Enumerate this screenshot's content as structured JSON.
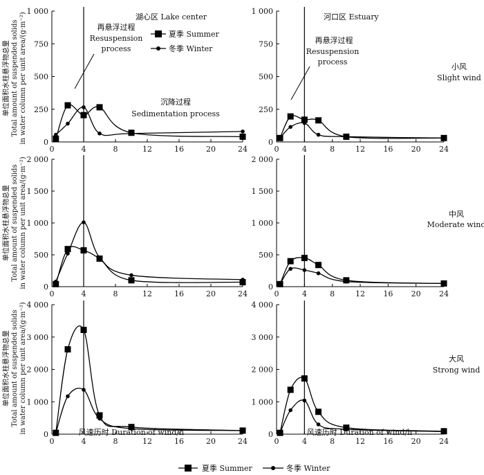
{
  "figure": {
    "y_axis_label_cn": "单位面积水柱悬浮物总量",
    "y_axis_label_en_1": "Total amount of suspended solids",
    "y_axis_label_en_2": "in water column per unit area/(g·m⁻²)",
    "x_axis_label": "风速历时 Duration of wind/h",
    "legend": {
      "summer": "夏季 Summer",
      "winter": "冬季 Winter"
    },
    "columns": {
      "lake_center": "湖心区 Lake center",
      "estuary": "河口区 Estuary"
    },
    "rows": {
      "slight": [
        "小风",
        "Slight wind"
      ],
      "moderate": [
        "中风",
        "Moderate wind"
      ],
      "strong": [
        "大风",
        "Strong wind"
      ]
    },
    "annotations": {
      "resuspension_cn": "再悬浮过程",
      "resuspension_en_1": "Resuspension",
      "resuspension_en_2": "process",
      "sedimentation_cn": "沉降过程",
      "sedimentation_en": "Sedimentation process"
    }
  },
  "chart_data": [
    {
      "id": "lake-slight",
      "type": "line",
      "location": "Lake center",
      "wind": "Slight wind",
      "ylim": [
        0,
        1000
      ],
      "yticks": [
        0,
        250,
        500,
        750,
        1000
      ],
      "ytick_labels": [
        "0",
        "250",
        "500",
        "750",
        "1 000"
      ],
      "xlim": [
        0,
        24
      ],
      "xticks": [
        0,
        4,
        8,
        12,
        16,
        20,
        24
      ],
      "series": [
        {
          "name": "Summer",
          "x": [
            0.5,
            2,
            4,
            6,
            10,
            24
          ],
          "y": [
            25,
            280,
            205,
            265,
            70,
            40
          ]
        },
        {
          "name": "Winter",
          "x": [
            0.5,
            2,
            4,
            6,
            10,
            24
          ],
          "y": [
            55,
            140,
            265,
            65,
            65,
            80
          ]
        }
      ]
    },
    {
      "id": "estuary-slight",
      "type": "line",
      "location": "Estuary",
      "wind": "Slight wind",
      "ylim": [
        0,
        1000
      ],
      "yticks": [
        0,
        250,
        500,
        750,
        1000
      ],
      "ytick_labels": [
        "0",
        "250",
        "500",
        "750",
        "1 000"
      ],
      "xlim": [
        0,
        24
      ],
      "xticks": [
        0,
        4,
        8,
        12,
        16,
        20,
        24
      ],
      "series": [
        {
          "name": "Summer",
          "x": [
            0.5,
            2,
            4,
            6,
            10,
            24
          ],
          "y": [
            30,
            195,
            170,
            165,
            40,
            30
          ]
        },
        {
          "name": "Winter",
          "x": [
            0.5,
            2,
            4,
            6,
            10,
            24
          ],
          "y": [
            30,
            115,
            145,
            55,
            40,
            30
          ]
        }
      ]
    },
    {
      "id": "lake-moderate",
      "type": "line",
      "location": "Lake center",
      "wind": "Moderate wind",
      "ylim": [
        0,
        2000
      ],
      "yticks": [
        0,
        500,
        1000,
        1500,
        2000
      ],
      "ytick_labels": [
        "0",
        "500",
        "1 000",
        "1 500",
        "2 000"
      ],
      "xlim": [
        0,
        24
      ],
      "xticks": [
        0,
        4,
        8,
        12,
        16,
        20,
        24
      ],
      "series": [
        {
          "name": "Summer",
          "x": [
            0.5,
            2,
            4,
            6,
            10,
            24
          ],
          "y": [
            40,
            590,
            570,
            440,
            100,
            70
          ]
        },
        {
          "name": "Winter",
          "x": [
            0.5,
            2,
            4,
            6,
            10,
            24
          ],
          "y": [
            80,
            520,
            1010,
            460,
            180,
            110
          ]
        }
      ]
    },
    {
      "id": "estuary-moderate",
      "type": "line",
      "location": "Estuary",
      "wind": "Moderate wind",
      "ylim": [
        0,
        2000
      ],
      "yticks": [
        0,
        500,
        1000,
        1500,
        2000
      ],
      "ytick_labels": [
        "0",
        "500",
        "1 000",
        "1 500",
        "2 000"
      ],
      "xlim": [
        0,
        24
      ],
      "xticks": [
        0,
        4,
        8,
        12,
        16,
        20,
        24
      ],
      "series": [
        {
          "name": "Summer",
          "x": [
            0.5,
            2,
            4,
            6,
            10,
            24
          ],
          "y": [
            40,
            400,
            450,
            340,
            100,
            50
          ]
        },
        {
          "name": "Winter",
          "x": [
            0.5,
            2,
            4,
            6,
            10,
            24
          ],
          "y": [
            40,
            280,
            260,
            210,
            80,
            50
          ]
        }
      ]
    },
    {
      "id": "lake-strong",
      "type": "line",
      "location": "Lake center",
      "wind": "Strong wind",
      "ylim": [
        0,
        4000
      ],
      "yticks": [
        0,
        1000,
        2000,
        3000,
        4000
      ],
      "ytick_labels": [
        "0",
        "1 000",
        "2 000",
        "3 000",
        "4 000"
      ],
      "xlim": [
        0,
        24
      ],
      "xticks": [
        0,
        4,
        8,
        12,
        16,
        20,
        24
      ],
      "series": [
        {
          "name": "Summer",
          "x": [
            0.5,
            2,
            4,
            6,
            10,
            24
          ],
          "y": [
            40,
            2620,
            3220,
            580,
            220,
            110
          ]
        },
        {
          "name": "Winter",
          "x": [
            0.5,
            2,
            4,
            6,
            10,
            24
          ],
          "y": [
            40,
            1170,
            1370,
            480,
            170,
            110
          ]
        }
      ]
    },
    {
      "id": "estuary-strong",
      "type": "line",
      "location": "Estuary",
      "wind": "Strong wind",
      "ylim": [
        0,
        4000
      ],
      "yticks": [
        0,
        1000,
        2000,
        3000,
        4000
      ],
      "ytick_labels": [
        "0",
        "1 000",
        "2 000",
        "3 000",
        "4 000"
      ],
      "xlim": [
        0,
        24
      ],
      "xticks": [
        0,
        4,
        8,
        12,
        16,
        20,
        24
      ],
      "series": [
        {
          "name": "Summer",
          "x": [
            0.5,
            2,
            4,
            6,
            10,
            24
          ],
          "y": [
            40,
            1370,
            1720,
            690,
            200,
            90
          ]
        },
        {
          "name": "Winter",
          "x": [
            0.5,
            2,
            4,
            6,
            10,
            24
          ],
          "y": [
            40,
            740,
            1040,
            300,
            150,
            80
          ]
        }
      ]
    }
  ]
}
